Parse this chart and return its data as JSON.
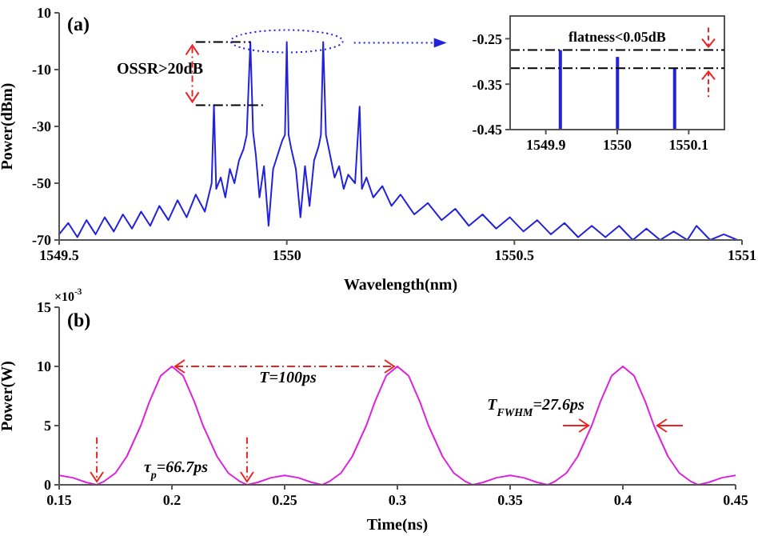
{
  "chart_data": [
    {
      "type": "line",
      "xlabel": "Wavelength(nm)",
      "ylabel": "Power(dBm)",
      "xlim": [
        1549.5,
        1551
      ],
      "xticks": [
        1549.5,
        1550,
        1550.5,
        1551
      ],
      "ylim": [
        -70,
        10
      ],
      "yticks": [
        10,
        -10,
        -30,
        -50,
        -70
      ],
      "series": [
        {
          "color": "#2222dd",
          "x": [
            1549.5,
            1549.52,
            1549.54,
            1549.56,
            1549.58,
            1549.6,
            1549.62,
            1549.64,
            1549.66,
            1549.68,
            1549.7,
            1549.72,
            1549.74,
            1549.76,
            1549.78,
            1549.8,
            1549.82,
            1549.835,
            1549.84,
            1549.845,
            1549.855,
            1549.865,
            1549.875,
            1549.885,
            1549.895,
            1549.905,
            1549.912,
            1549.92,
            1549.926,
            1549.932,
            1549.94,
            1549.95,
            1549.96,
            1549.97,
            1549.98,
            1549.99,
            1549.996,
            1550,
            1550.004,
            1550.01,
            1550.02,
            1550.03,
            1550.04,
            1550.05,
            1550.06,
            1550.07,
            1550.075,
            1550.08,
            1550.086,
            1550.095,
            1550.105,
            1550.115,
            1550.125,
            1550.135,
            1550.15,
            1550.16,
            1550.165,
            1550.175,
            1550.19,
            1550.21,
            1550.23,
            1550.25,
            1550.28,
            1550.31,
            1550.34,
            1550.37,
            1550.4,
            1550.43,
            1550.46,
            1550.49,
            1550.52,
            1550.55,
            1550.58,
            1550.61,
            1550.64,
            1550.67,
            1550.7,
            1550.73,
            1550.76,
            1550.79,
            1550.82,
            1550.85,
            1550.88,
            1550.9,
            1550.93,
            1550.96,
            1550.99
          ],
          "values": [
            -68,
            -64,
            -69,
            -63,
            -68,
            -62,
            -67,
            -61,
            -66,
            -60,
            -65,
            -58,
            -63,
            -56,
            -62,
            -54,
            -60,
            -50,
            -22.5,
            -52,
            -48,
            -55,
            -45,
            -50,
            -42,
            -38,
            -33,
            -0.3,
            -32,
            -40,
            -55,
            -44,
            -65,
            -45,
            -40,
            -35,
            -33,
            -0.3,
            -33,
            -38,
            -45,
            -62,
            -44,
            -58,
            -42,
            -37,
            -33,
            -0.3,
            -33,
            -40,
            -48,
            -44,
            -52,
            -47,
            -50,
            -23,
            -52,
            -48,
            -55,
            -51,
            -58,
            -54,
            -61,
            -57,
            -63,
            -59,
            -65,
            -61,
            -66,
            -62,
            -67,
            -63,
            -68,
            -64,
            -69,
            -65,
            -69,
            -65,
            -70,
            -66,
            -70,
            -67,
            -70,
            -65,
            -70,
            -68,
            -70
          ]
        }
      ],
      "ref_lines": [
        {
          "axis": "y",
          "value": -0.3,
          "color": "#000000",
          "line_style": "dashed"
        },
        {
          "axis": "y",
          "value": -22.5,
          "color": "#000000",
          "line_style": "dashed"
        }
      ],
      "annotations": [
        "(a)",
        "OSSR>20dB"
      ]
    },
    {
      "type": "bar",
      "xlim": [
        1549.85,
        1550.15
      ],
      "xticks": [
        1549.9,
        1550,
        1550.1
      ],
      "ylim": [
        -0.45,
        -0.2
      ],
      "yticks": [
        -0.25,
        -0.35,
        -0.45
      ],
      "x": [
        1549.92,
        1550,
        1550.08
      ],
      "base": [
        -0.45,
        -0.45,
        -0.45
      ],
      "values": [
        0.175,
        0.16,
        0.135
      ],
      "color": "#2222dd",
      "ref_lines": [
        {
          "axis": "y",
          "value": -0.275,
          "color": "#000000",
          "line_style": "dashed"
        },
        {
          "axis": "y",
          "value": -0.315,
          "color": "#000000",
          "line_style": "dashed"
        }
      ],
      "annotations": [
        "flatness<0.05dB"
      ]
    },
    {
      "type": "line",
      "xlabel": "Time(ns)",
      "ylabel": "Power(W)",
      "xlim": [
        0.15,
        0.45
      ],
      "xticks": [
        0.15,
        0.2,
        0.25,
        0.3,
        0.35,
        0.4,
        0.45
      ],
      "ylim": [
        0,
        15
      ],
      "yticks": [
        0,
        5,
        10,
        15
      ],
      "series": [
        {
          "color": "#dd22dd",
          "x": [
            0.15,
            0.156,
            0.162,
            0.1667,
            0.17,
            0.175,
            0.18,
            0.1862,
            0.19,
            0.195,
            0.2,
            0.205,
            0.21,
            0.2138,
            0.22,
            0.225,
            0.23,
            0.2333,
            0.238,
            0.244,
            0.25,
            0.256,
            0.262,
            0.2667,
            0.27,
            0.275,
            0.28,
            0.2862,
            0.29,
            0.295,
            0.3,
            0.305,
            0.31,
            0.3138,
            0.32,
            0.325,
            0.33,
            0.3333,
            0.338,
            0.344,
            0.35,
            0.356,
            0.362,
            0.3667,
            0.37,
            0.375,
            0.38,
            0.3862,
            0.39,
            0.395,
            0.4,
            0.405,
            0.41,
            0.4138,
            0.42,
            0.425,
            0.43,
            0.4333,
            0.438,
            0.444,
            0.45
          ],
          "values": [
            0.8,
            0.6,
            0.2,
            0,
            0.3,
            1,
            2.4,
            5,
            7,
            9.2,
            10,
            9.2,
            7,
            5,
            2.4,
            1,
            0.3,
            0,
            0.2,
            0.6,
            0.8,
            0.6,
            0.2,
            0,
            0.3,
            1,
            2.4,
            5,
            7,
            9.2,
            10,
            9.2,
            7,
            5,
            2.4,
            1,
            0.3,
            0,
            0.2,
            0.6,
            0.8,
            0.6,
            0.2,
            0,
            0.3,
            1,
            2.4,
            5,
            7,
            9.2,
            10,
            9.2,
            7,
            5,
            2.4,
            1,
            0.3,
            0,
            0.2,
            0.6,
            0.8
          ]
        }
      ],
      "annotations": [
        "(b)",
        "×10$^{-3}$",
        "T=100ps",
        "T$_{FWHM}$=27.6ps",
        "τ$_{p}$=66.7ps"
      ]
    }
  ]
}
